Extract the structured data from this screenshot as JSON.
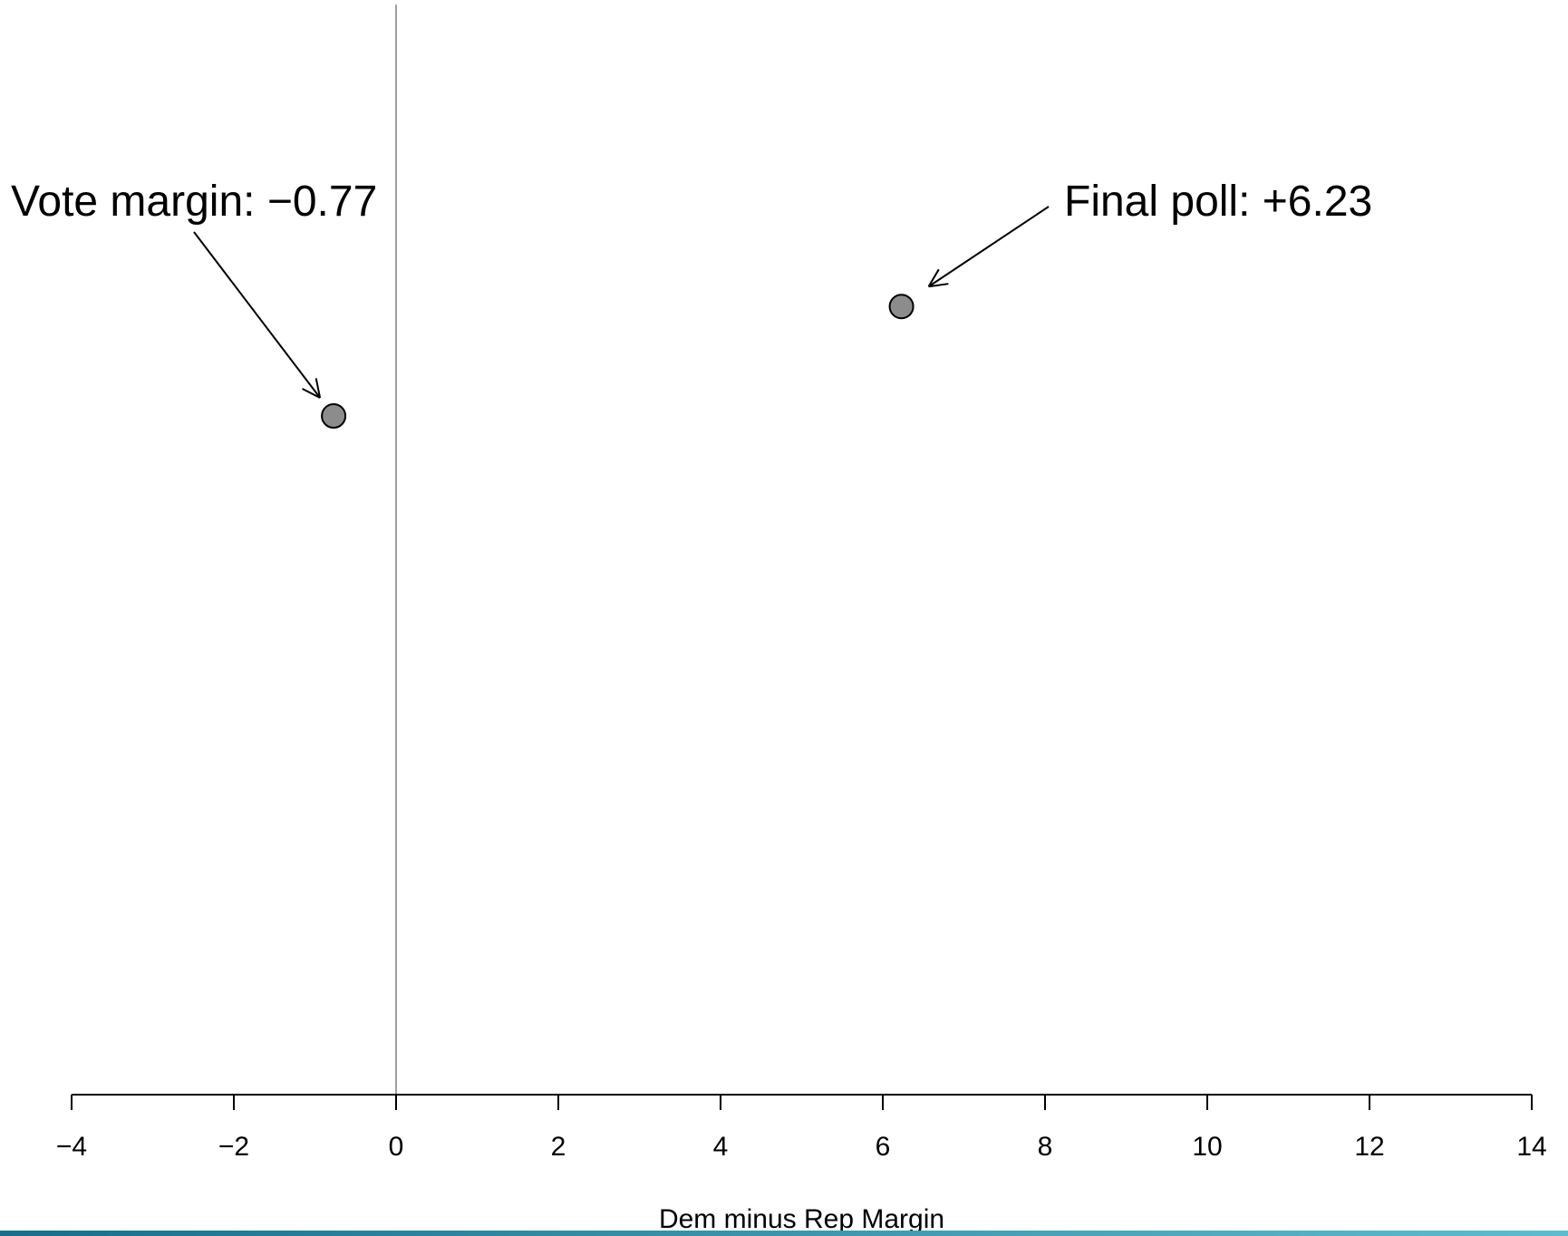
{
  "chart_data": {
    "type": "scatter",
    "title": "",
    "xlabel": "Dem minus Rep Margin",
    "ylabel": "",
    "xlim": [
      -4,
      14
    ],
    "ylim": [
      0,
      1
    ],
    "x_ticks": [
      -4,
      -2,
      0,
      2,
      4,
      6,
      8,
      10,
      12,
      14
    ],
    "x_tick_labels": [
      "−4",
      "−2",
      "0",
      "2",
      "4",
      "6",
      "8",
      "10",
      "12",
      "14"
    ],
    "reference_line_x": 0,
    "grid": false,
    "points": [
      {
        "x": -0.77,
        "y": 0.62,
        "label": "Vote margin: −0.77"
      },
      {
        "x": 6.23,
        "y": 0.72,
        "label": "Final poll: +6.23"
      }
    ]
  },
  "colors": {
    "point_fill": "#8c8c8c",
    "point_stroke": "#000000",
    "reference_line": "#a0a0a0",
    "axis": "#000000",
    "bottom_bar_start": "#1a6e8a",
    "bottom_bar_end": "#5fbcd0"
  }
}
